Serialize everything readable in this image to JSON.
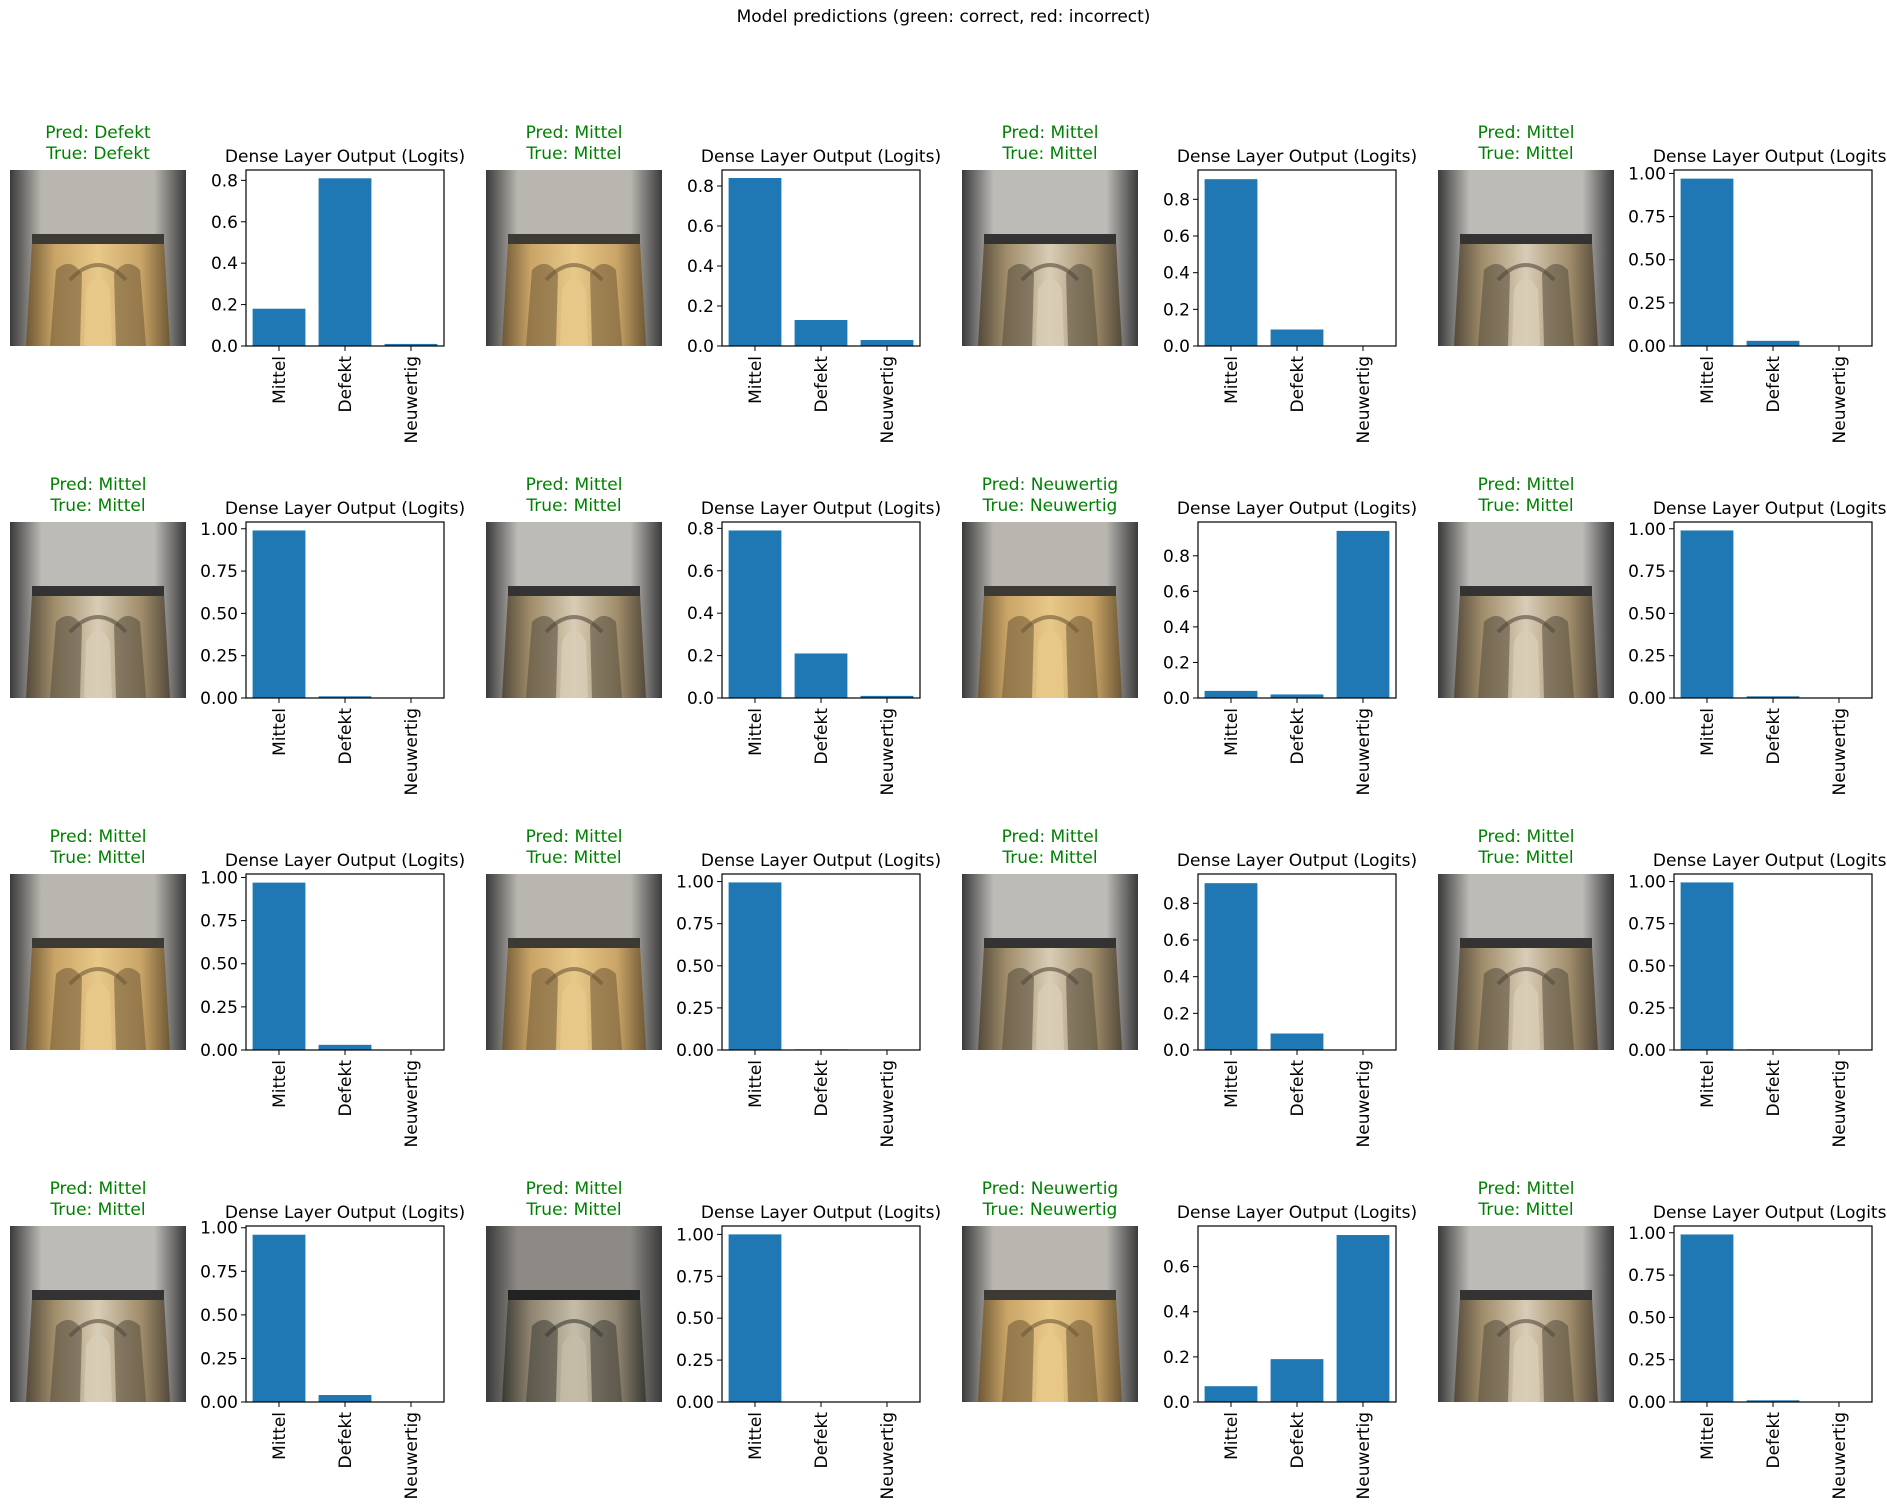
{
  "figure": {
    "suptitle": "Model predictions (green: correct, red: incorrect)",
    "correct_color": "#008000",
    "incorrect_color": "#ff0000",
    "bar_color": "#1f77b4"
  },
  "chart_data": [
    {
      "type": "bar",
      "title": "Dense Layer Output (Logits)",
      "pred_label": "Pred: Defekt",
      "true_label": "True: Defekt",
      "correct": true,
      "thumb_tone": "gold",
      "categories": [
        "Mittel",
        "Defekt",
        "Neuwertig"
      ],
      "values": [
        0.18,
        0.81,
        0.01
      ],
      "ylim": [
        0,
        0.85
      ],
      "yticks": [
        "0.0",
        "0.2",
        "0.4",
        "0.6",
        "0.8"
      ],
      "ytick_values": [
        0,
        0.2,
        0.4,
        0.6,
        0.8
      ]
    },
    {
      "type": "bar",
      "title": "Dense Layer Output (Logits)",
      "pred_label": "Pred: Mittel",
      "true_label": "True: Mittel",
      "correct": true,
      "thumb_tone": "gold",
      "categories": [
        "Mittel",
        "Defekt",
        "Neuwertig"
      ],
      "values": [
        0.84,
        0.13,
        0.03
      ],
      "ylim": [
        0,
        0.88
      ],
      "yticks": [
        "0.0",
        "0.2",
        "0.4",
        "0.6",
        "0.8"
      ],
      "ytick_values": [
        0,
        0.2,
        0.4,
        0.6,
        0.8
      ]
    },
    {
      "type": "bar",
      "title": "Dense Layer Output (Logits)",
      "pred_label": "Pred: Mittel",
      "true_label": "True: Mittel",
      "correct": true,
      "thumb_tone": "silver",
      "categories": [
        "Mittel",
        "Defekt",
        "Neuwertig"
      ],
      "values": [
        0.91,
        0.09,
        0.0
      ],
      "ylim": [
        0,
        0.96
      ],
      "yticks": [
        "0.0",
        "0.2",
        "0.4",
        "0.6",
        "0.8"
      ],
      "ytick_values": [
        0,
        0.2,
        0.4,
        0.6,
        0.8
      ]
    },
    {
      "type": "bar",
      "title": "Dense Layer Output (Logits)",
      "pred_label": "Pred: Mittel",
      "true_label": "True: Mittel",
      "correct": true,
      "thumb_tone": "silver",
      "categories": [
        "Mittel",
        "Defekt",
        "Neuwertig"
      ],
      "values": [
        0.97,
        0.03,
        0.0
      ],
      "ylim": [
        0,
        1.02
      ],
      "yticks": [
        "0.00",
        "0.25",
        "0.50",
        "0.75",
        "1.00"
      ],
      "ytick_values": [
        0,
        0.25,
        0.5,
        0.75,
        1.0
      ]
    },
    {
      "type": "bar",
      "title": "Dense Layer Output (Logits)",
      "pred_label": "Pred: Mittel",
      "true_label": "True: Mittel",
      "correct": true,
      "thumb_tone": "silver",
      "categories": [
        "Mittel",
        "Defekt",
        "Neuwertig"
      ],
      "values": [
        0.99,
        0.01,
        0.0
      ],
      "ylim": [
        0,
        1.04
      ],
      "yticks": [
        "0.00",
        "0.25",
        "0.50",
        "0.75",
        "1.00"
      ],
      "ytick_values": [
        0,
        0.25,
        0.5,
        0.75,
        1.0
      ]
    },
    {
      "type": "bar",
      "title": "Dense Layer Output (Logits)",
      "pred_label": "Pred: Mittel",
      "true_label": "True: Mittel",
      "correct": true,
      "thumb_tone": "silver",
      "categories": [
        "Mittel",
        "Defekt",
        "Neuwertig"
      ],
      "values": [
        0.79,
        0.21,
        0.01
      ],
      "ylim": [
        0,
        0.83
      ],
      "yticks": [
        "0.0",
        "0.2",
        "0.4",
        "0.6",
        "0.8"
      ],
      "ytick_values": [
        0,
        0.2,
        0.4,
        0.6,
        0.8
      ]
    },
    {
      "type": "bar",
      "title": "Dense Layer Output (Logits)",
      "pred_label": "Pred: Neuwertig",
      "true_label": "True: Neuwertig",
      "correct": true,
      "thumb_tone": "gold",
      "categories": [
        "Mittel",
        "Defekt",
        "Neuwertig"
      ],
      "values": [
        0.04,
        0.02,
        0.94
      ],
      "ylim": [
        0,
        0.99
      ],
      "yticks": [
        "0.0",
        "0.2",
        "0.4",
        "0.6",
        "0.8"
      ],
      "ytick_values": [
        0,
        0.2,
        0.4,
        0.6,
        0.8
      ]
    },
    {
      "type": "bar",
      "title": "Dense Layer Output (Logits)",
      "pred_label": "Pred: Mittel",
      "true_label": "True: Mittel",
      "correct": true,
      "thumb_tone": "silver",
      "categories": [
        "Mittel",
        "Defekt",
        "Neuwertig"
      ],
      "values": [
        0.99,
        0.01,
        0.0
      ],
      "ylim": [
        0,
        1.04
      ],
      "yticks": [
        "0.00",
        "0.25",
        "0.50",
        "0.75",
        "1.00"
      ],
      "ytick_values": [
        0,
        0.25,
        0.5,
        0.75,
        1.0
      ]
    },
    {
      "type": "bar",
      "title": "Dense Layer Output (Logits)",
      "pred_label": "Pred: Mittel",
      "true_label": "True: Mittel",
      "correct": true,
      "thumb_tone": "gold",
      "categories": [
        "Mittel",
        "Defekt",
        "Neuwertig"
      ],
      "values": [
        0.97,
        0.03,
        0.0
      ],
      "ylim": [
        0,
        1.02
      ],
      "yticks": [
        "0.00",
        "0.25",
        "0.50",
        "0.75",
        "1.00"
      ],
      "ytick_values": [
        0,
        0.25,
        0.5,
        0.75,
        1.0
      ]
    },
    {
      "type": "bar",
      "title": "Dense Layer Output (Logits)",
      "pred_label": "Pred: Mittel",
      "true_label": "True: Mittel",
      "correct": true,
      "thumb_tone": "gold",
      "categories": [
        "Mittel",
        "Defekt",
        "Neuwertig"
      ],
      "values": [
        0.995,
        0.004,
        0.001
      ],
      "ylim": [
        0,
        1.045
      ],
      "yticks": [
        "0.00",
        "0.25",
        "0.50",
        "0.75",
        "1.00"
      ],
      "ytick_values": [
        0,
        0.25,
        0.5,
        0.75,
        1.0
      ]
    },
    {
      "type": "bar",
      "title": "Dense Layer Output (Logits)",
      "pred_label": "Pred: Mittel",
      "true_label": "True: Mittel",
      "correct": true,
      "thumb_tone": "silver",
      "categories": [
        "Mittel",
        "Defekt",
        "Neuwertig"
      ],
      "values": [
        0.91,
        0.09,
        0.0
      ],
      "ylim": [
        0,
        0.96
      ],
      "yticks": [
        "0.0",
        "0.2",
        "0.4",
        "0.6",
        "0.8"
      ],
      "ytick_values": [
        0,
        0.2,
        0.4,
        0.6,
        0.8
      ]
    },
    {
      "type": "bar",
      "title": "Dense Layer Output (Logits)",
      "pred_label": "Pred: Mittel",
      "true_label": "True: Mittel",
      "correct": true,
      "thumb_tone": "silver",
      "categories": [
        "Mittel",
        "Defekt",
        "Neuwertig"
      ],
      "values": [
        0.995,
        0.004,
        0.001
      ],
      "ylim": [
        0,
        1.045
      ],
      "yticks": [
        "0.00",
        "0.25",
        "0.50",
        "0.75",
        "1.00"
      ],
      "ytick_values": [
        0,
        0.25,
        0.5,
        0.75,
        1.0
      ]
    },
    {
      "type": "bar",
      "title": "Dense Layer Output (Logits)",
      "pred_label": "Pred: Mittel",
      "true_label": "True: Mittel",
      "correct": true,
      "thumb_tone": "silver",
      "categories": [
        "Mittel",
        "Defekt",
        "Neuwertig"
      ],
      "values": [
        0.96,
        0.04,
        0.0
      ],
      "ylim": [
        0,
        1.01
      ],
      "yticks": [
        "0.00",
        "0.25",
        "0.50",
        "0.75",
        "1.00"
      ],
      "ytick_values": [
        0,
        0.25,
        0.5,
        0.75,
        1.0
      ]
    },
    {
      "type": "bar",
      "title": "Dense Layer Output (Logits)",
      "pred_label": "Pred: Mittel",
      "true_label": "True: Mittel",
      "correct": true,
      "thumb_tone": "dark",
      "categories": [
        "Mittel",
        "Defekt",
        "Neuwertig"
      ],
      "values": [
        1.0,
        0.0,
        0.0
      ],
      "ylim": [
        0,
        1.05
      ],
      "yticks": [
        "0.00",
        "0.25",
        "0.50",
        "0.75",
        "1.00"
      ],
      "ytick_values": [
        0,
        0.25,
        0.5,
        0.75,
        1.0
      ]
    },
    {
      "type": "bar",
      "title": "Dense Layer Output (Logits)",
      "pred_label": "Pred: Neuwertig",
      "true_label": "True: Neuwertig",
      "correct": true,
      "thumb_tone": "gold",
      "categories": [
        "Mittel",
        "Defekt",
        "Neuwertig"
      ],
      "values": [
        0.07,
        0.19,
        0.74
      ],
      "ylim": [
        0,
        0.78
      ],
      "yticks": [
        "0.0",
        "0.2",
        "0.4",
        "0.6"
      ],
      "ytick_values": [
        0,
        0.2,
        0.4,
        0.6
      ]
    },
    {
      "type": "bar",
      "title": "Dense Layer Output (Logits)",
      "pred_label": "Pred: Mittel",
      "true_label": "True: Mittel",
      "correct": true,
      "thumb_tone": "silver",
      "categories": [
        "Mittel",
        "Defekt",
        "Neuwertig"
      ],
      "values": [
        0.99,
        0.01,
        0.0
      ],
      "ylim": [
        0,
        1.04
      ],
      "yticks": [
        "0.00",
        "0.25",
        "0.50",
        "0.75",
        "1.00"
      ],
      "ytick_values": [
        0,
        0.25,
        0.5,
        0.75,
        1.0
      ]
    }
  ]
}
